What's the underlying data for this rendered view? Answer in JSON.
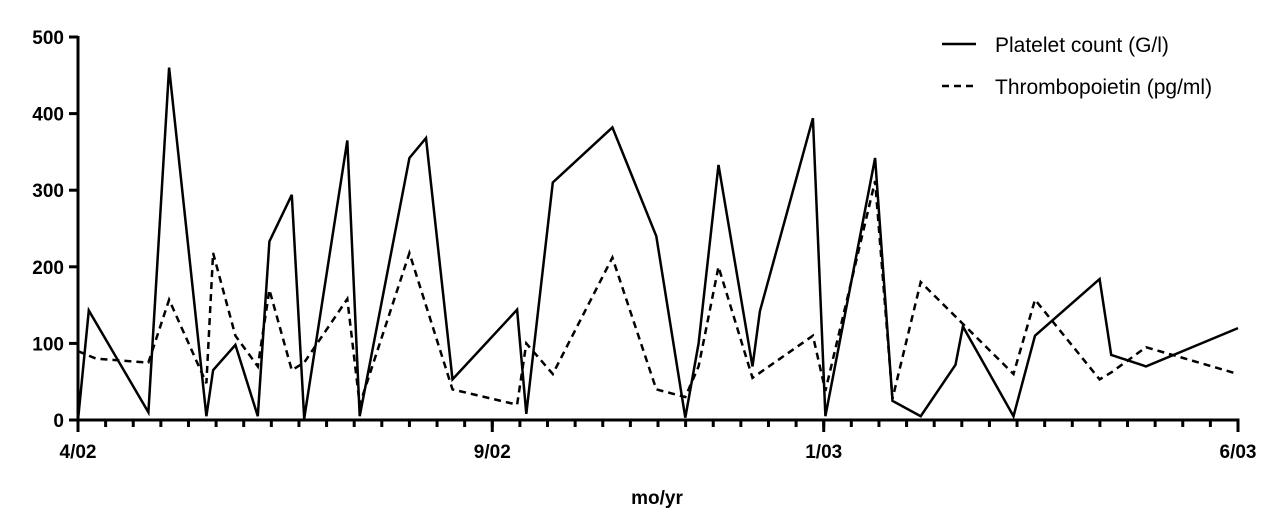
{
  "chart_data": {
    "type": "line",
    "xlabel": "mo/yr",
    "ylabel": "",
    "ylim": [
      0,
      500
    ],
    "yticks": [
      0,
      100,
      200,
      300,
      400,
      500
    ],
    "x_unit": "months since 4/02",
    "xlim": [
      0,
      14
    ],
    "x_major_ticks": [
      {
        "x": 0,
        "label": "4/02"
      },
      {
        "x": 5,
        "label": "9/02"
      },
      {
        "x": 9,
        "label": "1/03"
      },
      {
        "x": 14,
        "label": "6/03"
      }
    ],
    "x_minor_tick_step": 0.333,
    "legend_position": "top-right",
    "grid": false,
    "series": [
      {
        "name": "Platelet count (G/l)",
        "style": "solid",
        "color": "#000000",
        "x": [
          0,
          0.13,
          0.85,
          1.1,
          1.55,
          1.63,
          1.9,
          2.17,
          2.31,
          2.58,
          2.73,
          3.25,
          3.4,
          4.0,
          4.2,
          4.52,
          5.3,
          5.41,
          5.73,
          6.45,
          6.98,
          7.33,
          7.49,
          7.73,
          8.14,
          8.23,
          8.87,
          9.02,
          9.62,
          9.83,
          10.17,
          10.59,
          10.68,
          11.29,
          11.55,
          12.33,
          12.47,
          12.89,
          14.0
        ],
        "y": [
          0,
          143,
          10,
          460,
          5,
          65,
          98,
          5,
          233,
          294,
          2,
          365,
          5,
          342,
          368,
          53,
          144,
          8,
          310,
          382,
          240,
          3,
          100,
          333,
          70,
          142,
          394,
          5,
          342,
          25,
          5,
          72,
          122,
          5,
          110,
          184,
          85,
          70,
          120
        ]
      },
      {
        "name": "Thrombopoietin (pg/ml)",
        "style": "dashed",
        "color": "#000000",
        "x": [
          0,
          0.22,
          0.85,
          1.1,
          1.55,
          1.63,
          1.9,
          2.17,
          2.31,
          2.58,
          2.73,
          3.25,
          3.4,
          4.0,
          4.52,
          5.3,
          5.41,
          5.73,
          6.45,
          6.98,
          7.33,
          7.49,
          7.73,
          8.14,
          8.87,
          9.02,
          9.62,
          9.83,
          10.17,
          11.29,
          11.55,
          12.33,
          12.47,
          12.89,
          14.0
        ],
        "y": [
          90,
          80,
          75,
          157,
          48,
          218,
          110,
          70,
          170,
          65,
          75,
          158,
          20,
          218,
          40,
          20,
          100,
          60,
          212,
          40,
          30,
          70,
          200,
          55,
          110,
          38,
          312,
          28,
          180,
          60,
          157,
          53,
          62,
          95,
          60
        ]
      }
    ]
  }
}
